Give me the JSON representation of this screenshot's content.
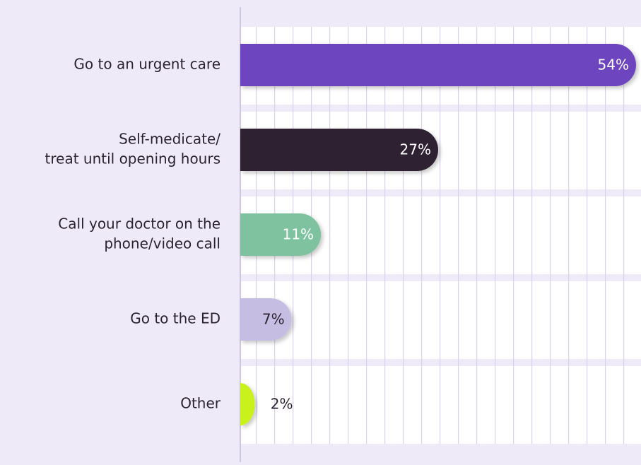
{
  "chart_data": {
    "type": "bar",
    "orientation": "horizontal",
    "categories": [
      [
        "Go to an urgent care"
      ],
      [
        "Self-medicate/",
        "treat until opening hours"
      ],
      [
        "Call your doctor on the",
        "phone/video call"
      ],
      [
        "Go to the ED"
      ],
      [
        "Other"
      ]
    ],
    "values": [
      54,
      27,
      11,
      7,
      2
    ],
    "value_labels": [
      "54%",
      "27%",
      "11%",
      "7%",
      "2%"
    ],
    "colors": [
      "#6c45bf",
      "#2f2233",
      "#7fc2a0",
      "#c6bde3",
      "#c9f21f"
    ],
    "xlim": [
      0,
      54
    ]
  }
}
